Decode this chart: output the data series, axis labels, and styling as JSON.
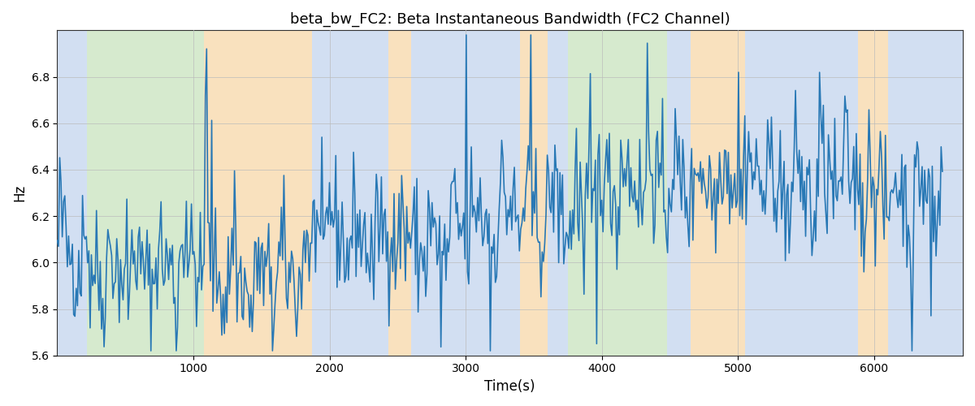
{
  "title": "beta_bw_FC2: Beta Instantaneous Bandwidth (FC2 Channel)",
  "xlabel": "Time(s)",
  "ylabel": "Hz",
  "ylim": [
    5.6,
    7.0
  ],
  "xlim": [
    0,
    6650
  ],
  "line_color": "#2878b5",
  "line_width": 1.2,
  "bg_bands": [
    {
      "xstart": 0,
      "xend": 220,
      "color": "#aec6e8",
      "alpha": 0.55
    },
    {
      "xstart": 220,
      "xend": 1080,
      "color": "#b5d9a6",
      "alpha": 0.55
    },
    {
      "xstart": 1080,
      "xend": 1870,
      "color": "#f5c98a",
      "alpha": 0.55
    },
    {
      "xstart": 1870,
      "xend": 2430,
      "color": "#aec6e8",
      "alpha": 0.55
    },
    {
      "xstart": 2430,
      "xend": 2600,
      "color": "#f5c98a",
      "alpha": 0.55
    },
    {
      "xstart": 2600,
      "xend": 3400,
      "color": "#aec6e8",
      "alpha": 0.55
    },
    {
      "xstart": 3400,
      "xend": 3600,
      "color": "#f5c98a",
      "alpha": 0.55
    },
    {
      "xstart": 3600,
      "xend": 3750,
      "color": "#aec6e8",
      "alpha": 0.55
    },
    {
      "xstart": 3750,
      "xend": 4480,
      "color": "#b5d9a6",
      "alpha": 0.55
    },
    {
      "xstart": 4480,
      "xend": 4650,
      "color": "#aec6e8",
      "alpha": 0.55
    },
    {
      "xstart": 4650,
      "xend": 5050,
      "color": "#f5c98a",
      "alpha": 0.55
    },
    {
      "xstart": 5050,
      "xend": 5880,
      "color": "#aec6e8",
      "alpha": 0.55
    },
    {
      "xstart": 5880,
      "xend": 6100,
      "color": "#f5c98a",
      "alpha": 0.55
    },
    {
      "xstart": 6100,
      "xend": 6650,
      "color": "#aec6e8",
      "alpha": 0.55
    }
  ],
  "n_points": 700,
  "seed": 42,
  "base_mean": 6.18,
  "noise_std": 0.13,
  "spike_count": 60,
  "spike_std": 0.28,
  "yticks": [
    5.6,
    5.8,
    6.0,
    6.2,
    6.4,
    6.6,
    6.8
  ],
  "xticks": [
    1000,
    2000,
    3000,
    4000,
    5000,
    6000
  ],
  "grid_color": "#bbbbbb",
  "grid_alpha": 0.7,
  "title_fontsize": 13
}
